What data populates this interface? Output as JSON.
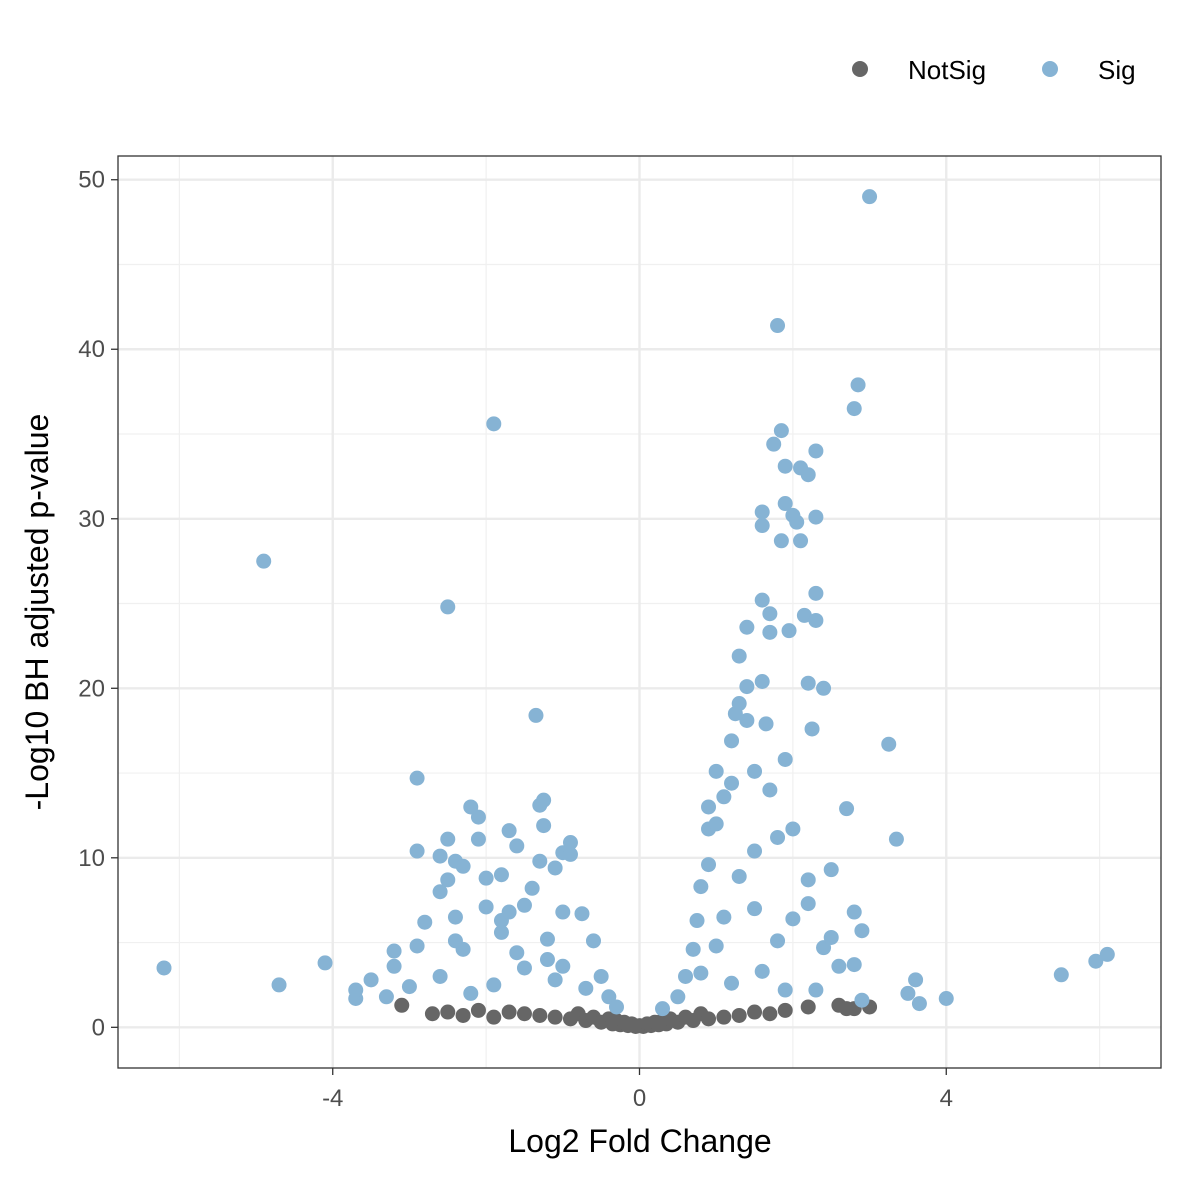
{
  "chart_data": {
    "type": "scatter",
    "title": "",
    "xlabel": "Log2 Fold Change",
    "ylabel": "-Log10 BH adjusted p-value",
    "xlim": [
      -6.8,
      6.8
    ],
    "ylim": [
      -2.4,
      51.4
    ],
    "xticks": [
      -4,
      0,
      4
    ],
    "xtick_labels": [
      "-4",
      "0",
      "4"
    ],
    "yticks": [
      0,
      10,
      20,
      30,
      40,
      50
    ],
    "ytick_labels": [
      "0",
      "10",
      "20",
      "30",
      "40",
      "50"
    ],
    "grid": true,
    "legend_position": "top-right",
    "legend": [
      {
        "name": "NotSig",
        "color": "#666666"
      },
      {
        "name": "Sig",
        "color": "#86b3d4"
      }
    ],
    "series": [
      {
        "name": "NotSig",
        "color": "#666666",
        "points": [
          [
            -3.1,
            1.3
          ],
          [
            -2.7,
            0.8
          ],
          [
            -2.5,
            0.9
          ],
          [
            -2.3,
            0.7
          ],
          [
            -2.1,
            1.0
          ],
          [
            -1.9,
            0.6
          ],
          [
            -1.7,
            0.9
          ],
          [
            -1.5,
            0.8
          ],
          [
            -1.3,
            0.7
          ],
          [
            -1.1,
            0.6
          ],
          [
            -0.9,
            0.5
          ],
          [
            -0.8,
            0.8
          ],
          [
            -0.7,
            0.4
          ],
          [
            -0.6,
            0.6
          ],
          [
            -0.5,
            0.3
          ],
          [
            -0.4,
            0.5
          ],
          [
            -0.35,
            0.2
          ],
          [
            -0.3,
            0.4
          ],
          [
            -0.25,
            0.15
          ],
          [
            -0.2,
            0.3
          ],
          [
            -0.15,
            0.1
          ],
          [
            -0.1,
            0.2
          ],
          [
            -0.05,
            0.05
          ],
          [
            0.0,
            0.1
          ],
          [
            0.05,
            0.05
          ],
          [
            0.1,
            0.2
          ],
          [
            0.15,
            0.1
          ],
          [
            0.2,
            0.3
          ],
          [
            0.25,
            0.15
          ],
          [
            0.3,
            0.4
          ],
          [
            0.35,
            0.2
          ],
          [
            0.4,
            0.5
          ],
          [
            0.5,
            0.3
          ],
          [
            0.6,
            0.6
          ],
          [
            0.7,
            0.4
          ],
          [
            0.8,
            0.8
          ],
          [
            0.9,
            0.5
          ],
          [
            1.1,
            0.6
          ],
          [
            1.3,
            0.7
          ],
          [
            1.5,
            0.9
          ],
          [
            1.7,
            0.8
          ],
          [
            1.9,
            1.0
          ],
          [
            2.2,
            1.2
          ],
          [
            2.6,
            1.3
          ],
          [
            2.7,
            1.1
          ],
          [
            2.8,
            1.1
          ],
          [
            3.0,
            1.2
          ]
        ]
      },
      {
        "name": "Sig",
        "color": "#86b3d4",
        "points": [
          [
            -6.2,
            3.5
          ],
          [
            -4.9,
            27.5
          ],
          [
            -4.7,
            2.5
          ],
          [
            -4.1,
            3.8
          ],
          [
            -3.7,
            1.7
          ],
          [
            -3.7,
            2.2
          ],
          [
            -3.5,
            2.8
          ],
          [
            -3.3,
            1.8
          ],
          [
            -3.2,
            3.6
          ],
          [
            -3.2,
            4.5
          ],
          [
            -3.0,
            2.4
          ],
          [
            -2.9,
            4.8
          ],
          [
            -2.9,
            10.4
          ],
          [
            -2.9,
            14.7
          ],
          [
            -2.8,
            6.2
          ],
          [
            -2.6,
            8.0
          ],
          [
            -2.6,
            10.1
          ],
          [
            -2.5,
            8.7
          ],
          [
            -2.5,
            11.1
          ],
          [
            -2.5,
            24.8
          ],
          [
            -2.4,
            9.8
          ],
          [
            -2.4,
            6.5
          ],
          [
            -2.3,
            4.6
          ],
          [
            -2.3,
            9.5
          ],
          [
            -2.2,
            13.0
          ],
          [
            -2.1,
            11.1
          ],
          [
            -2.1,
            12.4
          ],
          [
            -2.0,
            8.8
          ],
          [
            -2.0,
            7.1
          ],
          [
            -1.9,
            35.6
          ],
          [
            -1.8,
            9.0
          ],
          [
            -1.8,
            6.3
          ],
          [
            -1.7,
            11.6
          ],
          [
            -1.7,
            6.8
          ],
          [
            -1.6,
            10.7
          ],
          [
            -1.5,
            7.2
          ],
          [
            -1.4,
            8.2
          ],
          [
            -1.35,
            18.4
          ],
          [
            -1.3,
            9.8
          ],
          [
            -1.3,
            13.1
          ],
          [
            -1.25,
            13.4
          ],
          [
            -1.25,
            11.9
          ],
          [
            -1.2,
            5.2
          ],
          [
            -1.1,
            9.4
          ],
          [
            -1.0,
            10.3
          ],
          [
            -1.0,
            6.8
          ],
          [
            -0.9,
            10.9
          ],
          [
            -0.9,
            10.2
          ],
          [
            -0.75,
            6.7
          ],
          [
            -0.6,
            5.1
          ],
          [
            -0.5,
            3.0
          ],
          [
            -0.4,
            1.8
          ],
          [
            -0.3,
            1.2
          ],
          [
            -1.9,
            2.5
          ],
          [
            -1.5,
            3.5
          ],
          [
            -1.1,
            2.8
          ],
          [
            -2.6,
            3.0
          ],
          [
            -2.2,
            2.0
          ],
          [
            -1.6,
            4.4
          ],
          [
            -1.0,
            3.6
          ],
          [
            -0.7,
            2.3
          ],
          [
            -2.4,
            5.1
          ],
          [
            -1.8,
            5.6
          ],
          [
            -1.2,
            4.0
          ],
          [
            0.3,
            1.1
          ],
          [
            0.5,
            1.8
          ],
          [
            0.6,
            3.0
          ],
          [
            0.7,
            4.6
          ],
          [
            0.75,
            6.3
          ],
          [
            0.8,
            8.3
          ],
          [
            0.9,
            9.6
          ],
          [
            0.9,
            11.7
          ],
          [
            0.9,
            13.0
          ],
          [
            1.0,
            15.1
          ],
          [
            1.0,
            12.0
          ],
          [
            1.1,
            13.6
          ],
          [
            1.2,
            14.4
          ],
          [
            1.2,
            16.9
          ],
          [
            1.25,
            18.5
          ],
          [
            1.3,
            19.1
          ],
          [
            1.3,
            21.9
          ],
          [
            1.4,
            20.1
          ],
          [
            1.4,
            18.1
          ],
          [
            1.4,
            23.6
          ],
          [
            1.5,
            15.1
          ],
          [
            1.5,
            10.4
          ],
          [
            1.6,
            25.2
          ],
          [
            1.6,
            29.6
          ],
          [
            1.6,
            30.4
          ],
          [
            1.6,
            20.4
          ],
          [
            1.65,
            17.9
          ],
          [
            1.7,
            24.4
          ],
          [
            1.7,
            23.3
          ],
          [
            1.7,
            14.0
          ],
          [
            1.75,
            34.4
          ],
          [
            1.8,
            41.4
          ],
          [
            1.8,
            11.2
          ],
          [
            1.85,
            35.2
          ],
          [
            1.85,
            28.7
          ],
          [
            1.9,
            33.1
          ],
          [
            1.9,
            30.9
          ],
          [
            1.9,
            15.8
          ],
          [
            1.95,
            23.4
          ],
          [
            2.0,
            30.2
          ],
          [
            2.0,
            11.7
          ],
          [
            2.05,
            29.8
          ],
          [
            2.1,
            33.0
          ],
          [
            2.1,
            28.7
          ],
          [
            2.15,
            24.3
          ],
          [
            2.2,
            32.6
          ],
          [
            2.2,
            20.3
          ],
          [
            2.25,
            17.6
          ],
          [
            2.3,
            34.0
          ],
          [
            2.3,
            30.1
          ],
          [
            2.3,
            25.6
          ],
          [
            2.3,
            24.0
          ],
          [
            2.4,
            20.0
          ],
          [
            2.5,
            9.3
          ],
          [
            2.7,
            12.9
          ],
          [
            2.8,
            36.5
          ],
          [
            2.85,
            37.9
          ],
          [
            3.0,
            49.0
          ],
          [
            3.25,
            16.7
          ],
          [
            3.35,
            11.1
          ],
          [
            2.8,
            6.8
          ],
          [
            2.9,
            5.7
          ],
          [
            2.2,
            7.3
          ],
          [
            2.0,
            6.4
          ],
          [
            2.4,
            4.7
          ],
          [
            2.6,
            3.6
          ],
          [
            2.8,
            3.7
          ],
          [
            2.2,
            8.7
          ],
          [
            1.8,
            5.1
          ],
          [
            1.5,
            7.0
          ],
          [
            1.1,
            6.5
          ],
          [
            1.3,
            8.9
          ],
          [
            0.8,
            3.2
          ],
          [
            1.0,
            4.8
          ],
          [
            1.2,
            2.6
          ],
          [
            1.6,
            3.3
          ],
          [
            1.9,
            2.2
          ],
          [
            2.3,
            2.2
          ],
          [
            2.5,
            5.3
          ],
          [
            2.9,
            1.6
          ],
          [
            3.6,
            2.8
          ],
          [
            3.5,
            2.0
          ],
          [
            3.65,
            1.4
          ],
          [
            4.0,
            1.7
          ],
          [
            5.5,
            3.1
          ],
          [
            5.95,
            3.9
          ],
          [
            6.1,
            4.3
          ]
        ]
      }
    ]
  }
}
